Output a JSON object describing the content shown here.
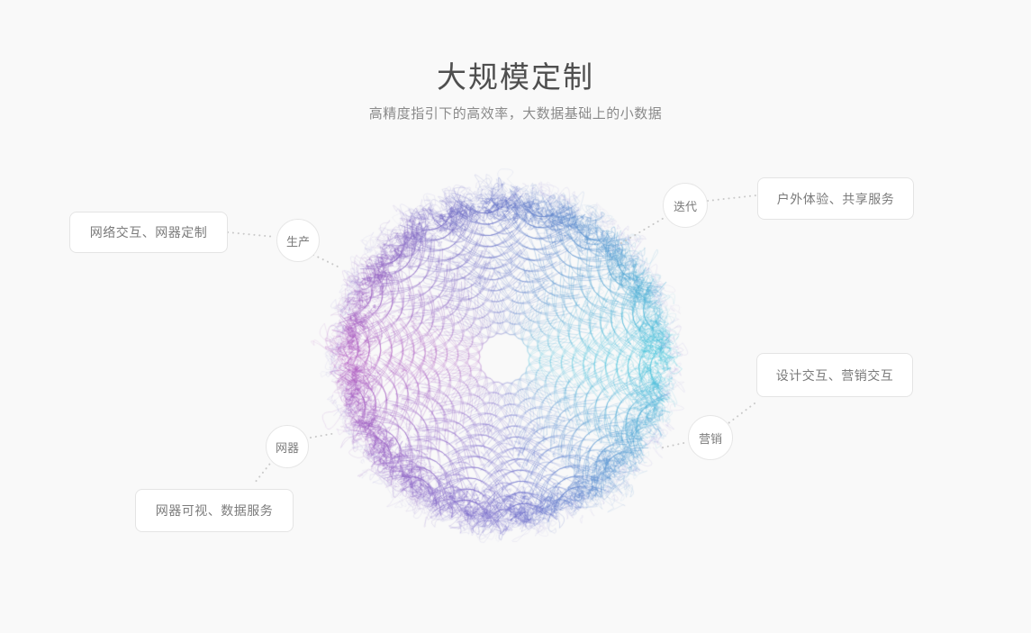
{
  "header": {
    "title": "大规模定制",
    "subtitle": "高精度指引下的高效率，大数据基础上的小数据"
  },
  "diagram": {
    "nodes": [
      {
        "id": "production",
        "label": "生产"
      },
      {
        "id": "iteration",
        "label": "迭代"
      },
      {
        "id": "marketing",
        "label": "营销"
      },
      {
        "id": "appliance",
        "label": "网器"
      }
    ],
    "cards": [
      {
        "id": "network-interaction",
        "label": "网络交互、网器定制"
      },
      {
        "id": "outdoor-experience",
        "label": "户外体验、共享服务"
      },
      {
        "id": "design-interaction",
        "label": "设计交互、营销交互"
      },
      {
        "id": "appliance-visual",
        "label": "网器可视、数据服务"
      }
    ],
    "sphere": {
      "type": "generative-particle-sphere",
      "colors": {
        "right": "#45c6dc",
        "bottom": "#6f68c9",
        "left": "#b159c0",
        "top": "#5e6ec5",
        "outer_fuzz": "#968cd7"
      }
    },
    "connector_color": "#c9c9c9"
  }
}
